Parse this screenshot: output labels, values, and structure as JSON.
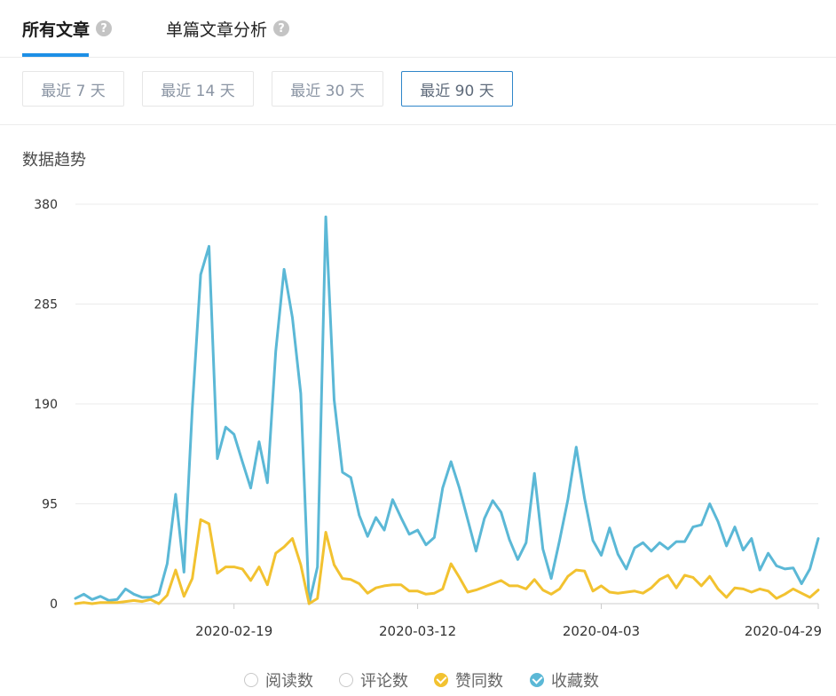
{
  "tabs": [
    {
      "label": "所有文章",
      "help": "?"
    },
    {
      "label": "单篇文章分析",
      "help": "?"
    }
  ],
  "ranges": [
    {
      "label": "最近 7 天"
    },
    {
      "label": "最近 14 天"
    },
    {
      "label": "最近 30 天"
    },
    {
      "label": "最近 90 天"
    }
  ],
  "section_title": "数据趋势",
  "legend": [
    {
      "label": "阅读数",
      "active": false,
      "color": "#c8c8c8"
    },
    {
      "label": "评论数",
      "active": false,
      "color": "#c8c8c8"
    },
    {
      "label": "赞同数",
      "active": true,
      "color": "#f2c230"
    },
    {
      "label": "收藏数",
      "active": true,
      "color": "#5bb8d6"
    }
  ],
  "chart_data": {
    "type": "line",
    "ylim": [
      0,
      380
    ],
    "yticks": [
      "380",
      "285",
      "190",
      "95",
      "0"
    ],
    "xtick_labels": [
      "2020-02-19",
      "2020-03-12",
      "2020-04-03",
      "2020-04-29"
    ],
    "x": [
      "2020-01-31",
      "2020-02-01",
      "2020-02-02",
      "2020-02-03",
      "2020-02-04",
      "2020-02-05",
      "2020-02-06",
      "2020-02-07",
      "2020-02-08",
      "2020-02-09",
      "2020-02-10",
      "2020-02-11",
      "2020-02-12",
      "2020-02-13",
      "2020-02-14",
      "2020-02-15",
      "2020-02-16",
      "2020-02-17",
      "2020-02-18",
      "2020-02-19",
      "2020-02-20",
      "2020-02-21",
      "2020-02-22",
      "2020-02-23",
      "2020-02-24",
      "2020-02-25",
      "2020-02-26",
      "2020-02-27",
      "2020-02-28",
      "2020-02-29",
      "2020-03-01",
      "2020-03-02",
      "2020-03-03",
      "2020-03-04",
      "2020-03-05",
      "2020-03-06",
      "2020-03-07",
      "2020-03-08",
      "2020-03-09",
      "2020-03-10",
      "2020-03-11",
      "2020-03-12",
      "2020-03-13",
      "2020-03-14",
      "2020-03-15",
      "2020-03-16",
      "2020-03-17",
      "2020-03-18",
      "2020-03-19",
      "2020-03-20",
      "2020-03-21",
      "2020-03-22",
      "2020-03-23",
      "2020-03-24",
      "2020-03-25",
      "2020-03-26",
      "2020-03-27",
      "2020-03-28",
      "2020-03-29",
      "2020-03-30",
      "2020-03-31",
      "2020-04-01",
      "2020-04-02",
      "2020-04-03",
      "2020-04-04",
      "2020-04-05",
      "2020-04-06",
      "2020-04-07",
      "2020-04-08",
      "2020-04-09",
      "2020-04-10",
      "2020-04-11",
      "2020-04-12",
      "2020-04-13",
      "2020-04-14",
      "2020-04-15",
      "2020-04-16",
      "2020-04-17",
      "2020-04-18",
      "2020-04-19",
      "2020-04-20",
      "2020-04-21",
      "2020-04-22",
      "2020-04-23",
      "2020-04-24",
      "2020-04-25",
      "2020-04-26",
      "2020-04-27",
      "2020-04-28",
      "2020-04-29"
    ],
    "series": [
      {
        "name": "收藏数",
        "color": "#5bb8d6",
        "values": [
          5,
          9,
          4,
          7,
          3,
          4,
          14,
          9,
          6,
          6,
          9,
          38,
          104,
          30,
          186,
          313,
          340,
          138,
          168,
          161,
          135,
          110,
          154,
          115,
          240,
          318,
          272,
          200,
          0,
          35,
          368,
          194,
          125,
          120,
          84,
          64,
          82,
          70,
          99,
          82,
          66,
          70,
          56,
          63,
          110,
          135,
          110,
          80,
          50,
          81,
          98,
          87,
          61,
          42,
          58,
          124,
          52,
          24,
          60,
          99,
          149,
          100,
          60,
          46,
          72,
          47,
          33,
          53,
          58,
          50,
          58,
          52,
          59,
          59,
          73,
          75,
          95,
          78,
          55,
          73,
          51,
          62,
          32,
          48,
          36,
          33,
          34,
          19,
          33,
          62
        ]
      },
      {
        "name": "赞同数",
        "color": "#f2c230",
        "values": [
          0,
          1,
          0,
          1,
          1,
          1,
          2,
          3,
          2,
          4,
          0,
          8,
          32,
          7,
          24,
          80,
          76,
          29,
          35,
          35,
          33,
          22,
          35,
          18,
          48,
          54,
          62,
          37,
          0,
          5,
          68,
          37,
          24,
          23,
          19,
          10,
          15,
          17,
          18,
          18,
          12,
          12,
          9,
          10,
          14,
          38,
          25,
          11,
          13,
          16,
          19,
          22,
          17,
          17,
          14,
          23,
          13,
          9,
          14,
          26,
          32,
          31,
          12,
          17,
          11,
          10,
          11,
          12,
          10,
          15,
          23,
          27,
          15,
          27,
          25,
          17,
          26,
          14,
          6,
          15,
          14,
          11,
          14,
          12,
          5,
          9,
          14,
          10,
          6,
          13
        ]
      }
    ]
  }
}
